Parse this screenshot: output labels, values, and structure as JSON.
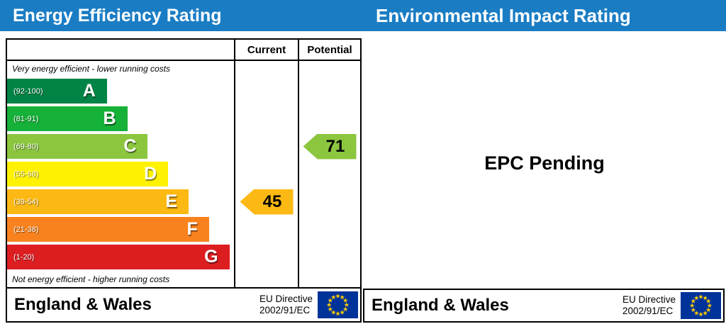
{
  "header": {
    "left_title": "Energy Efficiency Rating",
    "right_title": "Environmental Impact Rating"
  },
  "colors": {
    "header_bar": "#1a7dc4",
    "eu_flag_field": "#003399",
    "eu_flag_stars": "#ffcc00",
    "border": "#000000"
  },
  "energy_panel": {
    "columns": {
      "current": "Current",
      "potential": "Potential"
    },
    "top_note": "Very energy efficient - lower running costs",
    "bottom_note": "Not energy efficient - higher running costs",
    "footer": {
      "region": "England & Wales",
      "directive": [
        "EU Directive",
        "2002/91/EC"
      ]
    }
  },
  "impact_panel": {
    "message": "EPC Pending",
    "footer": {
      "region": "England & Wales",
      "directive": [
        "EU Directive",
        "2002/91/EC"
      ]
    }
  },
  "chart_data": {
    "type": "bar",
    "title": "Energy Efficiency Rating",
    "columns": [
      "Current",
      "Potential"
    ],
    "ylim": [
      1,
      100
    ],
    "bands": [
      {
        "letter": "A",
        "range": "(92-100)",
        "min": 92,
        "max": 100,
        "color": "#008445",
        "width_pct": 44
      },
      {
        "letter": "B",
        "range": "(81-91)",
        "min": 81,
        "max": 91,
        "color": "#15b138",
        "width_pct": 53
      },
      {
        "letter": "C",
        "range": "(69-80)",
        "min": 69,
        "max": 80,
        "color": "#8cc63f",
        "width_pct": 62
      },
      {
        "letter": "D",
        "range": "(55-68)",
        "min": 55,
        "max": 68,
        "color": "#fff200",
        "width_pct": 71
      },
      {
        "letter": "E",
        "range": "(39-54)",
        "min": 39,
        "max": 54,
        "color": "#fdb913",
        "width_pct": 80
      },
      {
        "letter": "F",
        "range": "(21-38)",
        "min": 21,
        "max": 38,
        "color": "#f9821e",
        "width_pct": 89
      },
      {
        "letter": "G",
        "range": "(1-20)",
        "min": 1,
        "max": 20,
        "color": "#dd1e21",
        "width_pct": 98
      }
    ],
    "markers": [
      {
        "column": "current",
        "value": 45,
        "band": "E",
        "color": "#fdb913"
      },
      {
        "column": "potential",
        "value": 71,
        "band": "C",
        "color": "#8cc63f"
      }
    ]
  }
}
